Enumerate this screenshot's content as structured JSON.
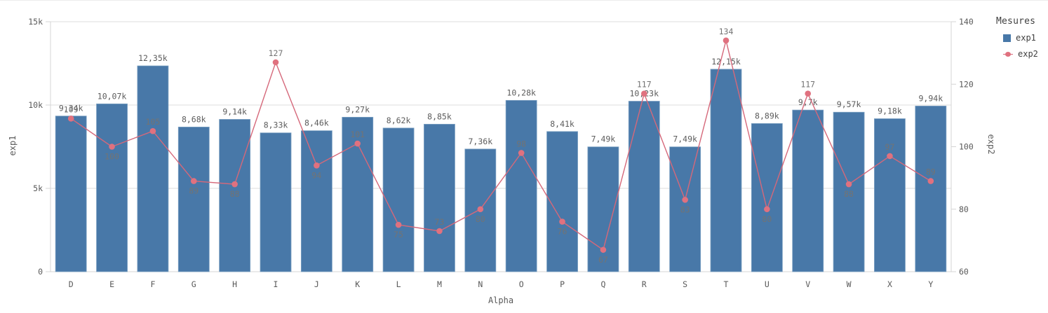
{
  "legend": {
    "title": "Mesures",
    "items": [
      {
        "label": "exp1",
        "type": "bar"
      },
      {
        "label": "exp2",
        "type": "line"
      }
    ]
  },
  "axes": {
    "left_title": "exp1",
    "right_title": "exp2",
    "x_title": "Alpha"
  },
  "colors": {
    "bar": "#4878a8",
    "bar_border": "#7ba0c2",
    "line": "#d5687a",
    "marker": "#e0717f",
    "grid": "#dcdcdc",
    "axis_line": "#d4d4d4",
    "tick_text": "#595959",
    "bar_value_text": "#5c5c5c",
    "line_value_text": "#737373",
    "background": "#ffffff"
  },
  "chart_data": {
    "type": "combo-bar-line",
    "title": "",
    "categories": [
      "D",
      "E",
      "F",
      "G",
      "H",
      "I",
      "J",
      "K",
      "L",
      "M",
      "N",
      "O",
      "P",
      "Q",
      "R",
      "S",
      "T",
      "U",
      "V",
      "W",
      "X",
      "Y"
    ],
    "series": [
      {
        "name": "exp1",
        "type": "bar",
        "axis": "left",
        "values": [
          9340,
          10070,
          12350,
          8680,
          9140,
          8330,
          8460,
          9270,
          8620,
          8850,
          7360,
          10280,
          8410,
          7490,
          10230,
          7490,
          12150,
          8890,
          9700,
          9570,
          9180,
          9940
        ],
        "labels": [
          "9,34k",
          "10,07k",
          "12,35k",
          "8,68k",
          "9,14k",
          "8,33k",
          "8,46k",
          "9,27k",
          "8,62k",
          "8,85k",
          "7,36k",
          "10,28k",
          "8,41k",
          "7,49k",
          "10,23k",
          "7,49k",
          "12,15k",
          "8,89k",
          "9,7k",
          "9,57k",
          "9,18k",
          "9,94k"
        ]
      },
      {
        "name": "exp2",
        "type": "line",
        "axis": "right",
        "values": [
          109,
          100,
          105,
          89,
          88,
          127,
          94,
          101,
          75,
          73,
          80,
          98,
          76,
          67,
          117,
          83,
          134,
          80,
          117,
          88,
          97,
          89
        ],
        "labels": [
          "109",
          "100",
          "105",
          "89",
          "88",
          "127",
          "94",
          "101",
          "75",
          "73",
          "80",
          "98",
          "76",
          "67",
          "117",
          "83",
          "134",
          "80",
          "117",
          "88",
          "97",
          "89"
        ],
        "label_side": [
          "above",
          "below",
          "above",
          "below",
          "below",
          "above",
          "below",
          "above",
          "below",
          "above",
          "below",
          "above",
          "below",
          "below",
          "above",
          "below",
          "above",
          "below",
          "above",
          "below",
          "above",
          "above"
        ]
      }
    ],
    "left_axis": {
      "title": "exp1",
      "min": 0,
      "max": 15000,
      "ticks": [
        0,
        5000,
        10000,
        15000
      ],
      "tick_labels": [
        "0",
        "5k",
        "10k",
        "15k"
      ]
    },
    "right_axis": {
      "title": "exp2",
      "min": 60,
      "max": 140,
      "ticks": [
        60,
        80,
        100,
        120,
        140
      ],
      "tick_labels": [
        "60",
        "80",
        "100",
        "120",
        "140"
      ]
    },
    "x_axis": {
      "title": "Alpha"
    },
    "grid": "horizontal-left-axis-ticks",
    "legend_position": "right"
  }
}
